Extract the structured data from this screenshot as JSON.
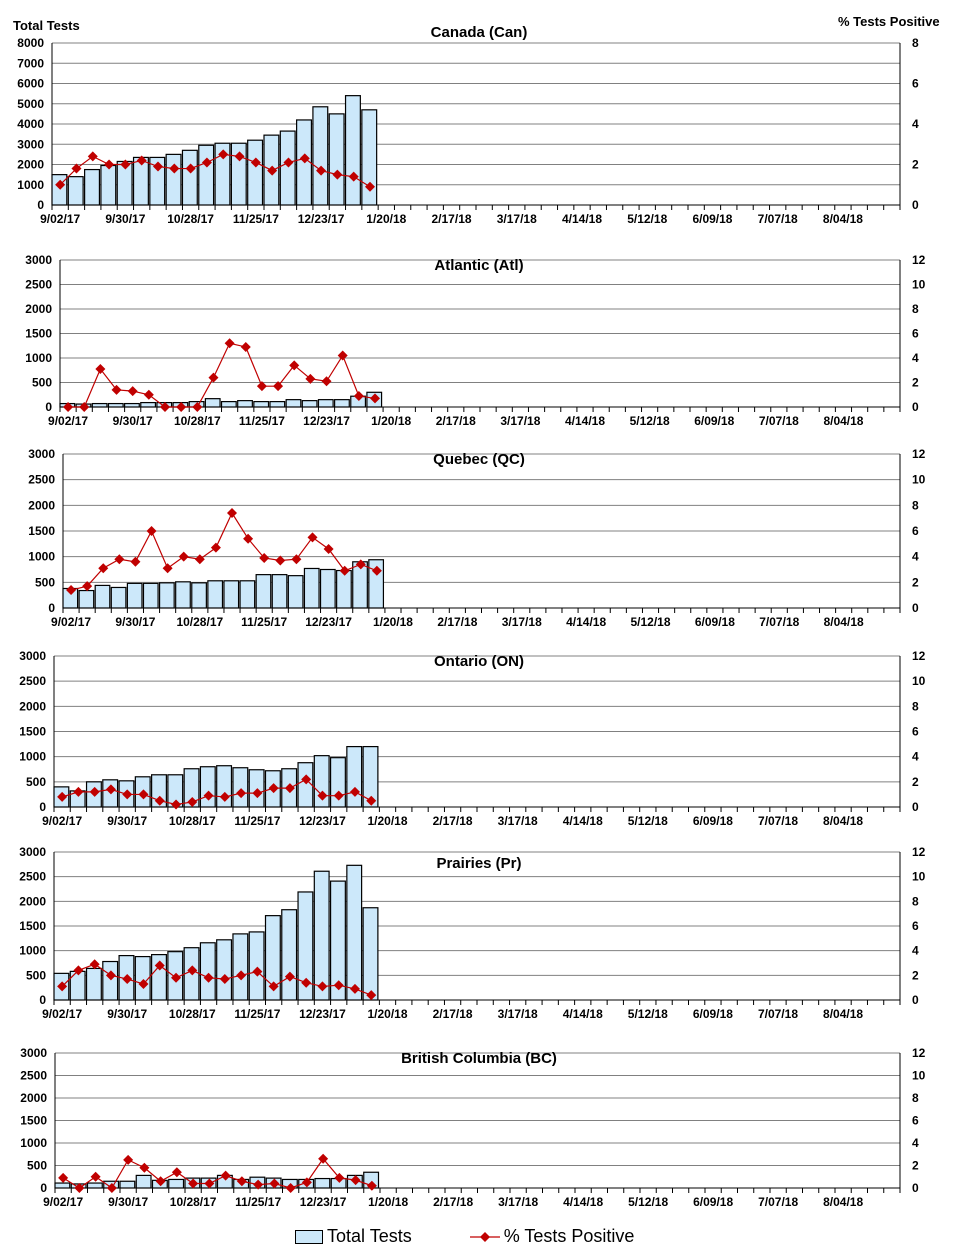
{
  "left_axis_title": "Total Tests",
  "right_axis_title": "% Tests Positive",
  "legend": {
    "bars": "Total Tests",
    "line": "% Tests Positive"
  },
  "colors": {
    "bar_fill": "#cce8fa",
    "line": "#c00000",
    "grid": "#808080"
  },
  "chart_data": [
    {
      "type": "bar+line",
      "title": "Canada (Can)",
      "ylim": [
        0,
        8000
      ],
      "ystep": 1000,
      "y2lim": [
        0,
        8
      ],
      "y2step": 2,
      "x_ticks": [
        "9/02/17",
        "9/30/17",
        "10/28/17",
        "11/25/17",
        "12/23/17",
        "1/20/18",
        "2/17/18",
        "3/17/18",
        "4/14/18",
        "5/12/18",
        "6/09/18",
        "7/07/18",
        "8/04/18"
      ],
      "total_tests": [
        1500,
        1400,
        1750,
        1950,
        2150,
        2350,
        2350,
        2500,
        2700,
        2950,
        3050,
        3050,
        3200,
        3450,
        3650,
        4200,
        4850,
        4500,
        5400,
        4700
      ],
      "pct_positive": [
        1.0,
        1.8,
        2.4,
        2.0,
        2.0,
        2.2,
        1.9,
        1.8,
        1.8,
        2.1,
        2.5,
        2.4,
        2.1,
        1.7,
        2.1,
        2.3,
        1.7,
        1.5,
        1.4,
        0.9
      ]
    },
    {
      "type": "bar+line",
      "title": "Atlantic (Atl)",
      "ylim": [
        0,
        3000
      ],
      "ystep": 500,
      "y2lim": [
        0,
        12
      ],
      "y2step": 2,
      "x_ticks": [
        "9/02/17",
        "9/30/17",
        "10/28/17",
        "11/25/17",
        "12/23/17",
        "1/20/18",
        "2/17/18",
        "3/17/18",
        "4/14/18",
        "5/12/18",
        "6/09/18",
        "7/07/18",
        "8/04/18"
      ],
      "total_tests": [
        70,
        60,
        70,
        70,
        70,
        90,
        90,
        90,
        110,
        170,
        110,
        130,
        110,
        110,
        150,
        130,
        150,
        150,
        220,
        300
      ],
      "pct_positive": [
        0,
        0,
        3.1,
        1.4,
        1.3,
        1.0,
        0,
        0,
        0,
        2.4,
        5.2,
        4.9,
        1.7,
        1.7,
        3.4,
        2.3,
        2.1,
        4.2,
        0.9,
        0.7
      ]
    },
    {
      "type": "bar+line",
      "title": "Quebec (QC)",
      "ylim": [
        0,
        3000
      ],
      "ystep": 500,
      "y2lim": [
        0,
        12
      ],
      "y2step": 2,
      "x_ticks": [
        "9/02/17",
        "9/30/17",
        "10/28/17",
        "11/25/17",
        "12/23/17",
        "1/20/18",
        "2/17/18",
        "3/17/18",
        "4/14/18",
        "5/12/18",
        "6/09/18",
        "7/07/18",
        "8/04/18"
      ],
      "total_tests": [
        380,
        340,
        440,
        400,
        480,
        480,
        490,
        510,
        490,
        530,
        530,
        530,
        650,
        650,
        630,
        770,
        750,
        730,
        900,
        940
      ],
      "pct_positive": [
        1.4,
        1.7,
        3.1,
        3.8,
        3.6,
        6.0,
        3.1,
        4.0,
        3.8,
        4.7,
        7.4,
        5.4,
        3.9,
        3.7,
        3.8,
        5.5,
        4.6,
        2.9,
        3.4,
        2.9
      ]
    },
    {
      "type": "bar+line",
      "title": "Ontario (ON)",
      "ylim": [
        0,
        3000
      ],
      "ystep": 500,
      "y2lim": [
        0,
        12
      ],
      "y2step": 2,
      "x_ticks": [
        "9/02/17",
        "9/30/17",
        "10/28/17",
        "11/25/17",
        "12/23/17",
        "1/20/18",
        "2/17/18",
        "3/17/18",
        "4/14/18",
        "5/12/18",
        "6/09/18",
        "7/07/18",
        "8/04/18"
      ],
      "total_tests": [
        400,
        320,
        500,
        540,
        520,
        600,
        640,
        640,
        760,
        800,
        820,
        780,
        740,
        720,
        760,
        880,
        1020,
        980,
        1200,
        1200
      ],
      "pct_positive": [
        0.8,
        1.2,
        1.2,
        1.4,
        1.0,
        1.0,
        0.5,
        0.2,
        0.4,
        0.9,
        0.8,
        1.1,
        1.1,
        1.5,
        1.5,
        2.2,
        0.9,
        0.9,
        1.2,
        0.5
      ]
    },
    {
      "type": "bar+line",
      "title": "Prairies (Pr)",
      "ylim": [
        0,
        3000
      ],
      "ystep": 500,
      "y2lim": [
        0,
        12
      ],
      "y2step": 2,
      "x_ticks": [
        "9/02/17",
        "9/30/17",
        "10/28/17",
        "11/25/17",
        "12/23/17",
        "1/20/18",
        "2/17/18",
        "3/17/18",
        "4/14/18",
        "5/12/18",
        "6/09/18",
        "7/07/18",
        "8/04/18"
      ],
      "total_tests": [
        540,
        580,
        640,
        780,
        900,
        880,
        920,
        980,
        1060,
        1160,
        1220,
        1340,
        1380,
        1710,
        1830,
        2190,
        2610,
        2410,
        2730,
        1870
      ],
      "pct_positive": [
        1.1,
        2.4,
        2.9,
        2.0,
        1.7,
        1.3,
        2.8,
        1.8,
        2.4,
        1.8,
        1.7,
        2.0,
        2.3,
        1.1,
        1.9,
        1.4,
        1.1,
        1.2,
        0.9,
        0.4
      ]
    },
    {
      "type": "bar+line",
      "title": "British Columbia (BC)",
      "ylim": [
        0,
        3000
      ],
      "ystep": 500,
      "y2lim": [
        0,
        12
      ],
      "y2step": 2,
      "x_ticks": [
        "9/02/17",
        "9/30/17",
        "10/28/17",
        "11/25/17",
        "12/23/17",
        "1/20/18",
        "2/17/18",
        "3/17/18",
        "4/14/18",
        "5/12/18",
        "6/09/18",
        "7/07/18",
        "8/04/18"
      ],
      "total_tests": [
        110,
        90,
        110,
        150,
        150,
        280,
        170,
        190,
        220,
        220,
        280,
        190,
        240,
        220,
        190,
        190,
        210,
        210,
        280,
        350
      ],
      "pct_positive": [
        0.9,
        0,
        1.0,
        0,
        2.5,
        1.8,
        0.6,
        1.4,
        0.4,
        0.4,
        1.1,
        0.6,
        0.3,
        0.4,
        0,
        0.5,
        2.6,
        0.9,
        0.7,
        0.2
      ]
    }
  ]
}
